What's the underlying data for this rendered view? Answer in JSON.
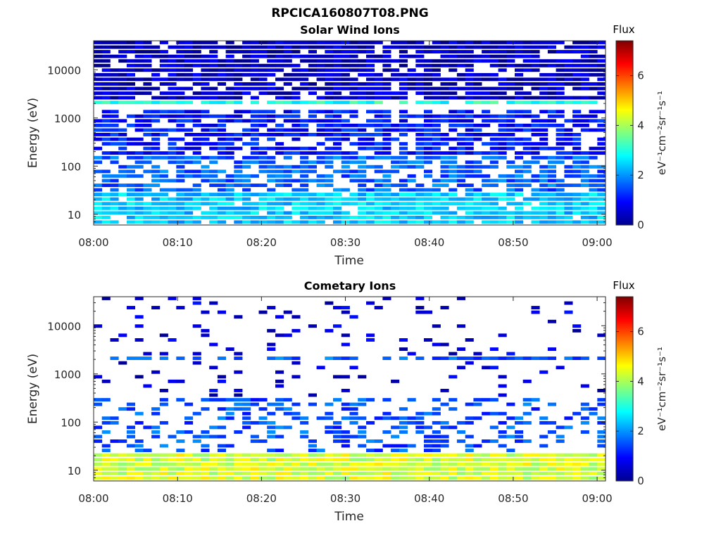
{
  "figure": {
    "title": "RPCICA160807T08.PNG"
  },
  "chart_data": [
    {
      "type": "heatmap",
      "title": "Solar Wind Ions",
      "xlabel": "Time",
      "ylabel": "Energy (eV)",
      "x_ticks": [
        "08:00",
        "08:10",
        "08:20",
        "08:30",
        "08:40",
        "08:50",
        "09:00"
      ],
      "xlim": [
        "08:00",
        "09:01"
      ],
      "y_scale": "log",
      "y_ticks": [
        "10",
        "100",
        "1000",
        "10000"
      ],
      "ylim": [
        6,
        40000
      ],
      "colorbar": {
        "label": "Flux",
        "unit_label": "eV⁻¹cm⁻²sr⁻¹s⁻¹",
        "ticks": [
          "0",
          "2",
          "4",
          "6"
        ],
        "range": [
          0,
          7.4
        ],
        "colormap": "jet"
      },
      "description_of_data": "Broad low-flux (0-1) coverage above ~100 eV, moderate flux (~2-3) below ~30 eV, periodic flux ~3 line near 2000 eV",
      "band_profile": [
        {
          "energy_range": [
            6,
            30
          ],
          "typical_flux": 2.4,
          "fill_fraction": 0.9
        },
        {
          "energy_range": [
            30,
            150
          ],
          "typical_flux": 1.6,
          "fill_fraction": 0.7
        },
        {
          "energy_range": [
            150,
            1500
          ],
          "typical_flux": 1.0,
          "fill_fraction": 0.75
        },
        {
          "energy_range": [
            1700,
            2300
          ],
          "typical_flux": 3.0,
          "fill_fraction": 0.8
        },
        {
          "energy_range": [
            2300,
            40000
          ],
          "typical_flux": 0.5,
          "fill_fraction": 0.85
        }
      ]
    },
    {
      "type": "heatmap",
      "title": "Cometary Ions",
      "xlabel": "Time",
      "ylabel": "Energy (eV)",
      "x_ticks": [
        "08:00",
        "08:10",
        "08:20",
        "08:30",
        "08:40",
        "08:50",
        "09:00"
      ],
      "xlim": [
        "08:00",
        "09:01"
      ],
      "y_scale": "log",
      "y_ticks": [
        "10",
        "100",
        "1000",
        "10000"
      ],
      "ylim": [
        6,
        40000
      ],
      "colorbar": {
        "label": "Flux",
        "unit_label": "eV⁻¹cm⁻²sr⁻¹s⁻¹",
        "ticks": [
          "0",
          "2",
          "4",
          "6"
        ],
        "range": [
          0,
          7.4
        ],
        "colormap": "jet"
      },
      "description_of_data": "Dense high-flux (~4-5) band below ~25 eV, sparse low-flux streaks above, intermittent line near 2000 eV",
      "band_profile": [
        {
          "energy_range": [
            6,
            25
          ],
          "typical_flux": 4.3,
          "fill_fraction": 1.0
        },
        {
          "energy_range": [
            25,
            300
          ],
          "typical_flux": 1.5,
          "fill_fraction": 0.35
        },
        {
          "energy_range": [
            1800,
            2200
          ],
          "typical_flux": 1.6,
          "fill_fraction": 0.6
        },
        {
          "energy_range": [
            300,
            40000
          ],
          "typical_flux": 0.6,
          "fill_fraction": 0.1
        }
      ]
    }
  ]
}
